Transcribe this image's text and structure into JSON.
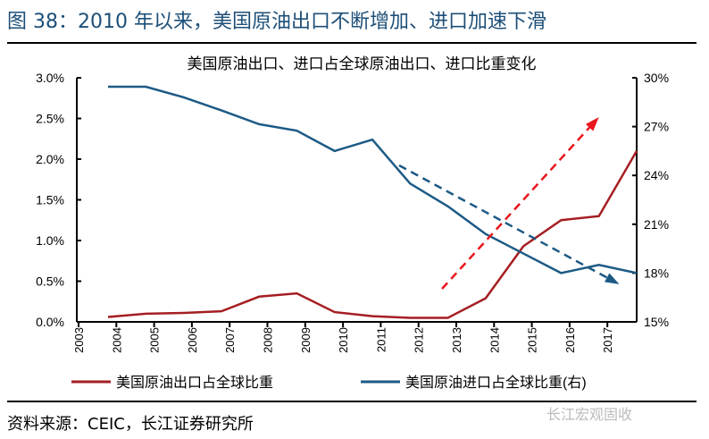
{
  "header": {
    "title": "图 38：2010 年以来，美国原油出口不断增加、进口加速下滑"
  },
  "footer": {
    "source": "资料来源：CEIC，长江证券研究所",
    "watermark": "长江宏观固收"
  },
  "chart_data": {
    "type": "line",
    "title": "美国原油出口、进口占全球原油出口、进口比重变化",
    "x_ticks": [
      "2003",
      "2004",
      "2005",
      "2006",
      "2007",
      "2008",
      "2009",
      "2010",
      "2011",
      "2012",
      "2013",
      "2014",
      "2015",
      "2016",
      "2017"
    ],
    "left_axis": {
      "ylim": [
        0,
        3.0
      ],
      "ticks": [
        "0.0%",
        "0.5%",
        "1.0%",
        "1.5%",
        "2.0%",
        "2.5%",
        "3.0%"
      ]
    },
    "right_axis": {
      "ylim": [
        15,
        30
      ],
      "ticks": [
        "15%",
        "18%",
        "21%",
        "24%",
        "27%",
        "30%"
      ]
    },
    "grid": false,
    "legend_position": "bottom",
    "series": [
      {
        "name": "美国原油出口占全球比重",
        "axis": "left",
        "color": "#a51e22",
        "values": [
          0.06,
          0.1,
          0.11,
          0.13,
          0.31,
          0.35,
          0.12,
          0.07,
          0.05,
          0.05,
          0.29,
          0.93,
          1.25,
          1.3,
          2.1
        ]
      },
      {
        "name": "美国原油进口占全球比重(右)",
        "axis": "right",
        "color": "#1c5a85",
        "values": [
          29.45,
          29.45,
          28.8,
          28.0,
          27.15,
          26.75,
          25.5,
          26.2,
          23.5,
          22.1,
          20.4,
          19.2,
          18.0,
          18.5,
          18.0
        ]
      }
    ],
    "annotations": [
      {
        "type": "dashed-arrow",
        "direction": "up",
        "color": "#e8171d"
      },
      {
        "type": "dashed-arrow",
        "direction": "down",
        "color": "#1c5a85"
      }
    ]
  }
}
